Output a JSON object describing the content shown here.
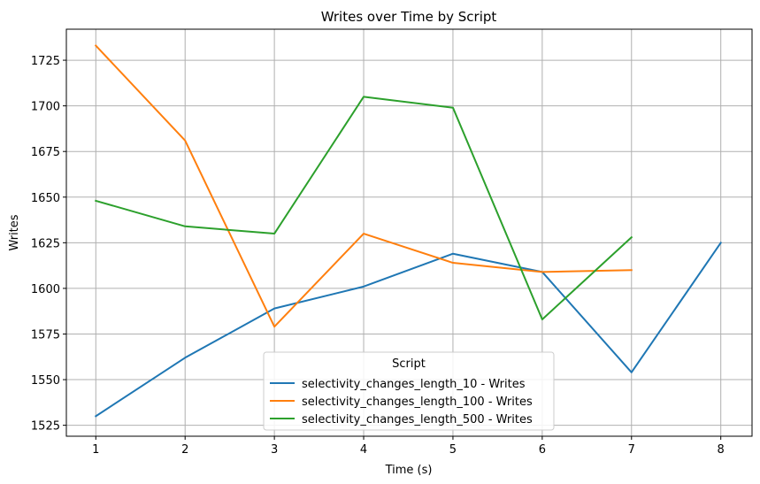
{
  "chart_data": {
    "type": "line",
    "title": "Writes over Time by Script",
    "xlabel": "Time (s)",
    "ylabel": "Writes",
    "xlim": [
      0.67,
      8.35
    ],
    "ylim": [
      1519,
      1742
    ],
    "xticks": [
      1,
      2,
      3,
      4,
      5,
      6,
      7,
      8
    ],
    "yticks": [
      1525,
      1550,
      1575,
      1600,
      1625,
      1650,
      1675,
      1700,
      1725
    ],
    "grid": true,
    "legend": {
      "title": "Script",
      "placement": "lower center"
    },
    "series": [
      {
        "name": "selectivity_changes_length_10 - Writes",
        "color": "#1f77b4",
        "x": [
          1,
          2,
          3,
          4,
          5,
          6,
          7,
          8
        ],
        "values": [
          1530,
          1562,
          1589,
          1601,
          1619,
          1609,
          1554,
          1625
        ]
      },
      {
        "name": "selectivity_changes_length_100 - Writes",
        "color": "#ff7f0e",
        "x": [
          1,
          2,
          3,
          4,
          5,
          6,
          7
        ],
        "values": [
          1733,
          1681,
          1579,
          1630,
          1614,
          1609,
          1610
        ]
      },
      {
        "name": "selectivity_changes_length_500 - Writes",
        "color": "#2ca02c",
        "x": [
          1,
          2,
          3,
          4,
          5,
          6,
          7
        ],
        "values": [
          1648,
          1634,
          1630,
          1705,
          1699,
          1583,
          1628
        ]
      }
    ]
  }
}
